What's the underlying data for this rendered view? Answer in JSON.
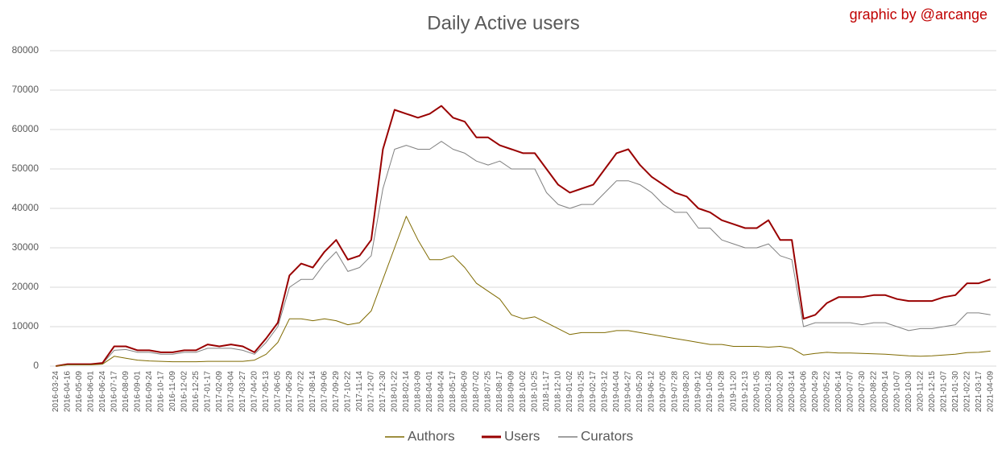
{
  "chart_data": {
    "type": "line",
    "title": "Daily Active users",
    "annotation": "graphic by @arcange",
    "categories": [
      "2016-03-24",
      "2016-04-16",
      "2016-05-09",
      "2016-06-01",
      "2016-06-24",
      "2016-07-17",
      "2016-08-09",
      "2016-09-01",
      "2016-09-24",
      "2016-10-17",
      "2016-11-09",
      "2016-12-02",
      "2016-12-25",
      "2017-01-17",
      "2017-02-09",
      "2017-03-04",
      "2017-03-27",
      "2017-04-20",
      "2017-05-13",
      "2017-06-05",
      "2017-06-29",
      "2017-07-22",
      "2017-08-14",
      "2017-09-06",
      "2017-09-29",
      "2017-10-22",
      "2017-11-14",
      "2017-12-07",
      "2017-12-30",
      "2018-01-22",
      "2018-02-14",
      "2018-03-09",
      "2018-04-01",
      "2018-04-24",
      "2018-05-17",
      "2018-06-09",
      "2018-07-02",
      "2018-07-25",
      "2018-08-17",
      "2018-09-09",
      "2018-10-02",
      "2018-10-25",
      "2018-11-17",
      "2018-12-10",
      "2019-01-02",
      "2019-01-25",
      "2019-02-17",
      "2019-03-12",
      "2019-04-04",
      "2019-04-27",
      "2019-05-20",
      "2019-06-12",
      "2019-07-05",
      "2019-07-28",
      "2019-08-20",
      "2019-09-12",
      "2019-10-05",
      "2019-10-28",
      "2019-11-20",
      "2019-12-13",
      "2020-01-05",
      "2020-01-28",
      "2020-02-20",
      "2020-03-14",
      "2020-04-06",
      "2020-04-29",
      "2020-05-22",
      "2020-06-14",
      "2020-07-07",
      "2020-07-30",
      "2020-08-22",
      "2020-09-14",
      "2020-10-07",
      "2020-10-30",
      "2020-11-22",
      "2020-12-15",
      "2021-01-07",
      "2021-01-30",
      "2021-02-22",
      "2021-03-17",
      "2021-04-09"
    ],
    "series": [
      {
        "name": "Authors",
        "color": "#7f6a00",
        "values": [
          0,
          300,
          300,
          300,
          500,
          2500,
          2000,
          1500,
          1300,
          1200,
          1100,
          1100,
          1100,
          1200,
          1200,
          1200,
          1200,
          1500,
          3000,
          6000,
          12000,
          12000,
          11500,
          12000,
          11500,
          10500,
          11000,
          14000,
          22000,
          30000,
          38000,
          32000,
          27000,
          27000,
          28000,
          25000,
          21000,
          19000,
          17000,
          13000,
          12000,
          12500,
          11000,
          9500,
          8000,
          8500,
          8500,
          8500,
          9000,
          9000,
          8500,
          8000,
          7500,
          7000,
          6500,
          6000,
          5500,
          5500,
          5000,
          5000,
          5000,
          4800,
          5000,
          4500,
          2800,
          3200,
          3500,
          3300,
          3300,
          3200,
          3100,
          3000,
          2800,
          2600,
          2500,
          2600,
          2800,
          3000,
          3400,
          3500,
          3800
        ]
      },
      {
        "name": "Users",
        "color": "#990000",
        "values": [
          0,
          500,
          500,
          500,
          800,
          5000,
          5000,
          4000,
          4000,
          3500,
          3500,
          4000,
          4000,
          5500,
          5000,
          5500,
          5000,
          3500,
          7000,
          11000,
          23000,
          26000,
          25000,
          29000,
          32000,
          27000,
          28000,
          32000,
          55000,
          65000,
          64000,
          63000,
          64000,
          66000,
          63000,
          62000,
          58000,
          58000,
          56000,
          55000,
          54000,
          54000,
          50000,
          46000,
          44000,
          45000,
          46000,
          50000,
          54000,
          55000,
          51000,
          48000,
          46000,
          44000,
          43000,
          40000,
          39000,
          37000,
          36000,
          35000,
          35000,
          37000,
          32000,
          32000,
          12000,
          13000,
          16000,
          17500,
          17500,
          17500,
          18000,
          18000,
          17000,
          16500,
          16500,
          16500,
          17500,
          18000,
          21000,
          21000,
          22000
        ]
      },
      {
        "name": "Curators",
        "color": "#808080",
        "values": [
          0,
          400,
          400,
          400,
          600,
          4000,
          4200,
          3500,
          3500,
          3000,
          3000,
          3500,
          3500,
          4500,
          4500,
          4500,
          4000,
          3000,
          6000,
          10000,
          20000,
          22000,
          22000,
          26000,
          29000,
          24000,
          25000,
          28000,
          45000,
          55000,
          56000,
          55000,
          55000,
          57000,
          55000,
          54000,
          52000,
          51000,
          52000,
          50000,
          50000,
          50000,
          44000,
          41000,
          40000,
          41000,
          41000,
          44000,
          47000,
          47000,
          46000,
          44000,
          41000,
          39000,
          39000,
          35000,
          35000,
          32000,
          31000,
          30000,
          30000,
          31000,
          28000,
          27000,
          10000,
          11000,
          11000,
          11000,
          11000,
          10500,
          11000,
          11000,
          10000,
          9000,
          9500,
          9500,
          10000,
          10500,
          13500,
          13500,
          13000
        ]
      }
    ],
    "ylim": [
      0,
      80000
    ],
    "yticks": [
      0,
      10000,
      20000,
      30000,
      40000,
      50000,
      60000,
      70000,
      80000
    ],
    "grid": true,
    "legend": "bottom"
  }
}
